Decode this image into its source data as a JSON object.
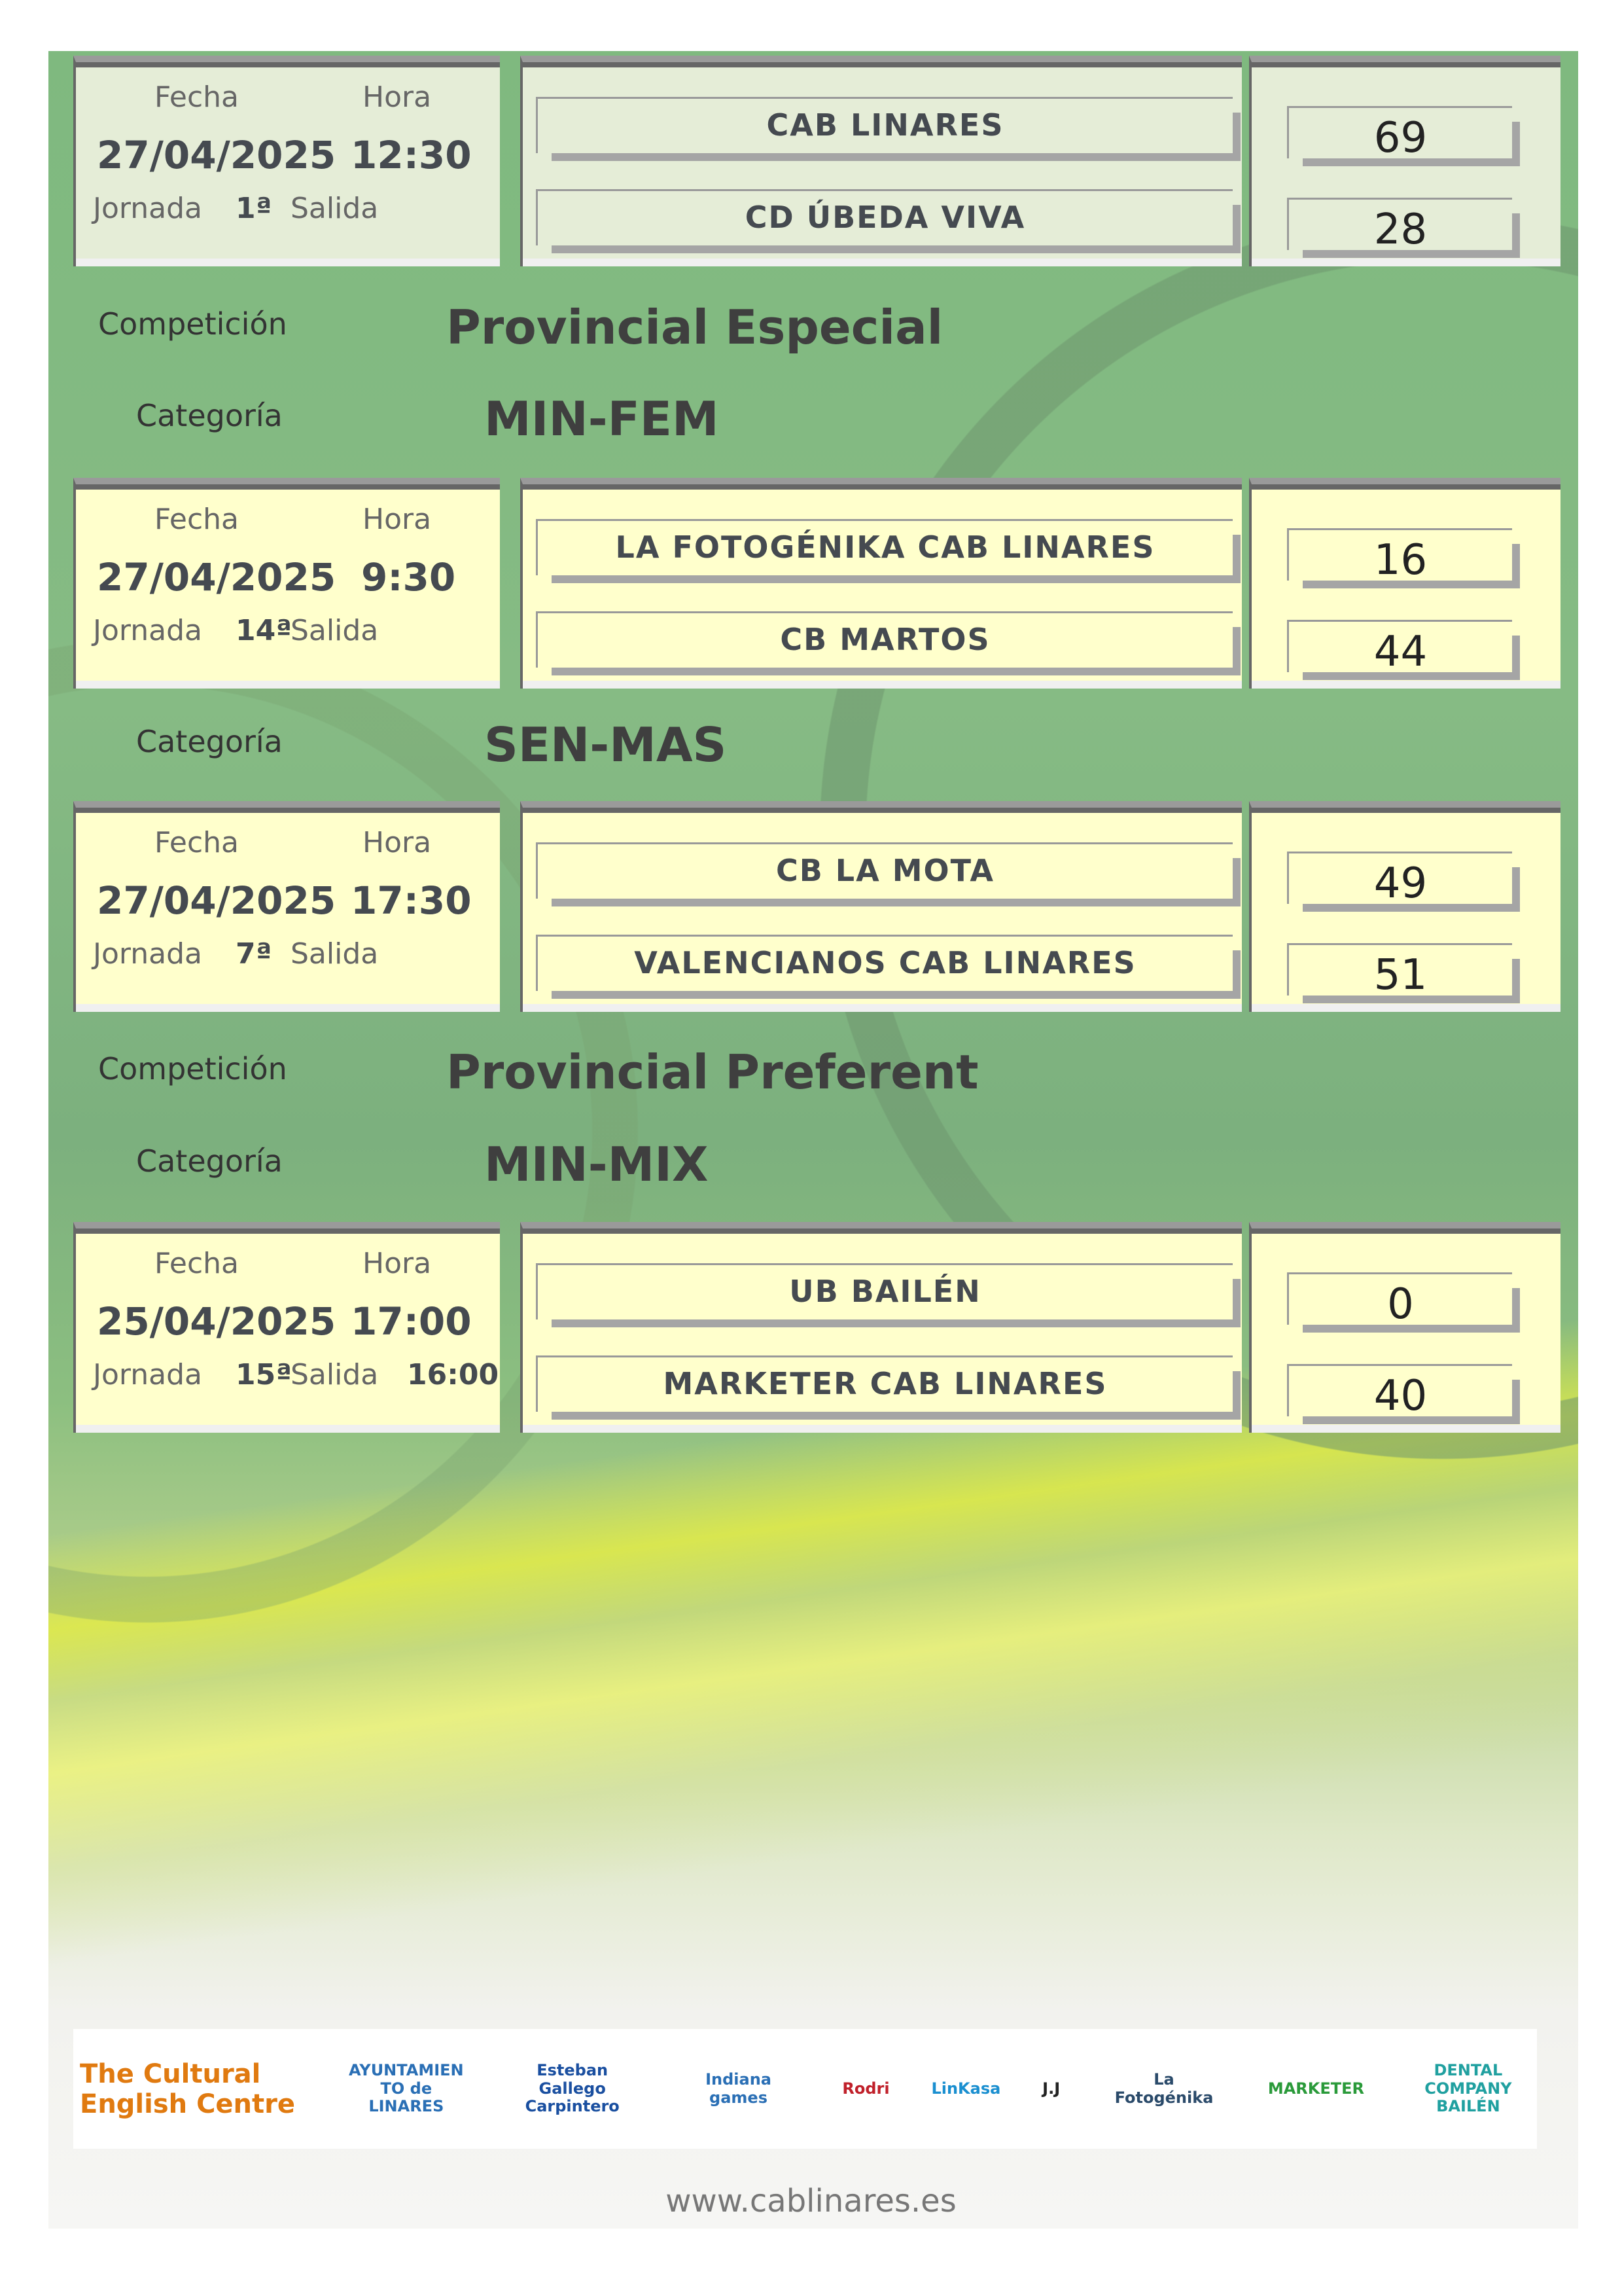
{
  "labels": {
    "fecha": "Fecha",
    "hora": "Hora",
    "jornada": "Jornada",
    "salida": "Salida",
    "competicion": "Competición",
    "categoria": "Categoría"
  },
  "colors": {
    "card_green": "#e5edd7",
    "card_yellow": "#ffffcc",
    "text": "#454a50"
  },
  "matches": [
    {
      "fecha": "27/04/2025",
      "hora": "12:30",
      "jornada": "1ª",
      "salida": "",
      "home": "CAB LINARES",
      "away": "CD ÚBEDA VIVA",
      "home_score": "69",
      "away_score": "28",
      "color": "#e5edd7"
    },
    {
      "fecha": "27/04/2025",
      "hora": "9:30",
      "jornada": "14ª",
      "salida": "",
      "home": "LA FOTOGÉNIKA CAB LINARES",
      "away": "CB MARTOS",
      "home_score": "16",
      "away_score": "44",
      "color": "#ffffcc"
    },
    {
      "fecha": "27/04/2025",
      "hora": "17:30",
      "jornada": "7ª",
      "salida": "",
      "home": "CB LA MOTA",
      "away": "VALENCIANOS CAB LINARES",
      "home_score": "49",
      "away_score": "51",
      "color": "#ffffcc"
    },
    {
      "fecha": "25/04/2025",
      "hora": "17:00",
      "jornada": "15ª",
      "salida": "16:00",
      "home": "UB BAILÉN",
      "away": "MARKETER CAB LINARES",
      "home_score": "0",
      "away_score": "40",
      "color": "#ffffcc"
    }
  ],
  "headers": [
    {
      "type": "competicion",
      "value": "Provincial Especial"
    },
    {
      "type": "categoria",
      "value": "MIN-FEM"
    },
    {
      "type": "categoria",
      "value": "SEN-MAS"
    },
    {
      "type": "competicion",
      "value": "Provincial Preferent"
    },
    {
      "type": "categoria",
      "value": "MIN-MIX"
    }
  ],
  "sponsors": [
    "The Cultural English Centre",
    "AYUNTAMIENTO de LINARES",
    "Esteban Gallego Carpintero",
    "Indiana games",
    "Rodri",
    "LinKasa",
    "J.J",
    "La Fotogénika",
    "MARKETER",
    "DENTAL COMPANY BAILÉN"
  ],
  "footer": {
    "url": "www.cablinares.es"
  }
}
